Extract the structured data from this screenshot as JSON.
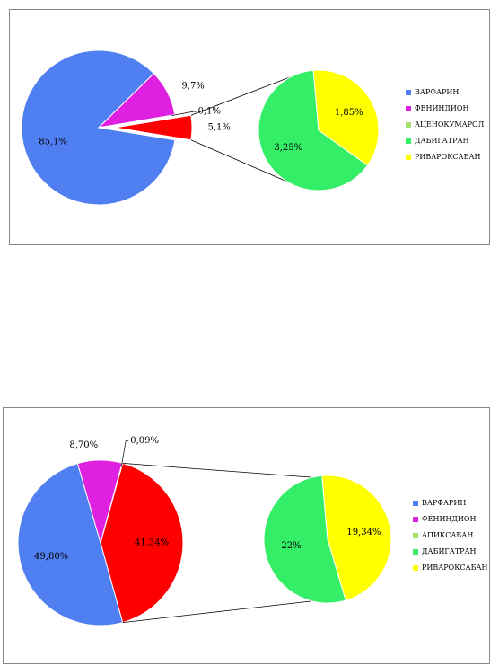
{
  "chart_data": [
    {
      "type": "pie-of-pie",
      "primary": {
        "categories": [
          "ВАРФАРИН",
          "ФЕНИНДИОН",
          "АЦЕНОКУМАРОЛ"
        ],
        "values": [
          85.1,
          9.7,
          0.1
        ],
        "value_labels": [
          "85,1%",
          "9,7%",
          "0,1%"
        ],
        "colors": [
          "#4f7ff0",
          "#e020e0",
          "#a8e070"
        ]
      },
      "other": {
        "value": 5.1,
        "value_label": "5,1%",
        "color": "#ff0000",
        "explode": true
      },
      "secondary": {
        "categories": [
          "ДАБИГАТРАН",
          "РИВАРОКСАБАН"
        ],
        "values": [
          3.25,
          1.85
        ],
        "value_labels": [
          "3,25%",
          "1,85%"
        ],
        "colors": [
          "#33ee66",
          "#ffff00"
        ]
      },
      "legend": "right"
    },
    {
      "type": "pie-of-pie",
      "primary": {
        "categories": [
          "ВАРФАРИН",
          "ФЕНИНДИОН",
          "АПИКСАБАН"
        ],
        "values": [
          49.8,
          8.7,
          0.09
        ],
        "value_labels": [
          "49,80%",
          "8,70%",
          "0,09%"
        ],
        "colors": [
          "#4f7ff0",
          "#e020e0",
          "#a8e070"
        ]
      },
      "other": {
        "value": 41.34,
        "value_label": "41,34%",
        "color": "#ff0000",
        "explode": false
      },
      "secondary": {
        "categories": [
          "ДАБИГАТРАН",
          "РИВАРОКСАБАН"
        ],
        "values": [
          22,
          19.34
        ],
        "value_labels": [
          "22%",
          "19,34%"
        ],
        "colors": [
          "#33ee66",
          "#ffff00"
        ]
      },
      "legend": "right"
    }
  ]
}
